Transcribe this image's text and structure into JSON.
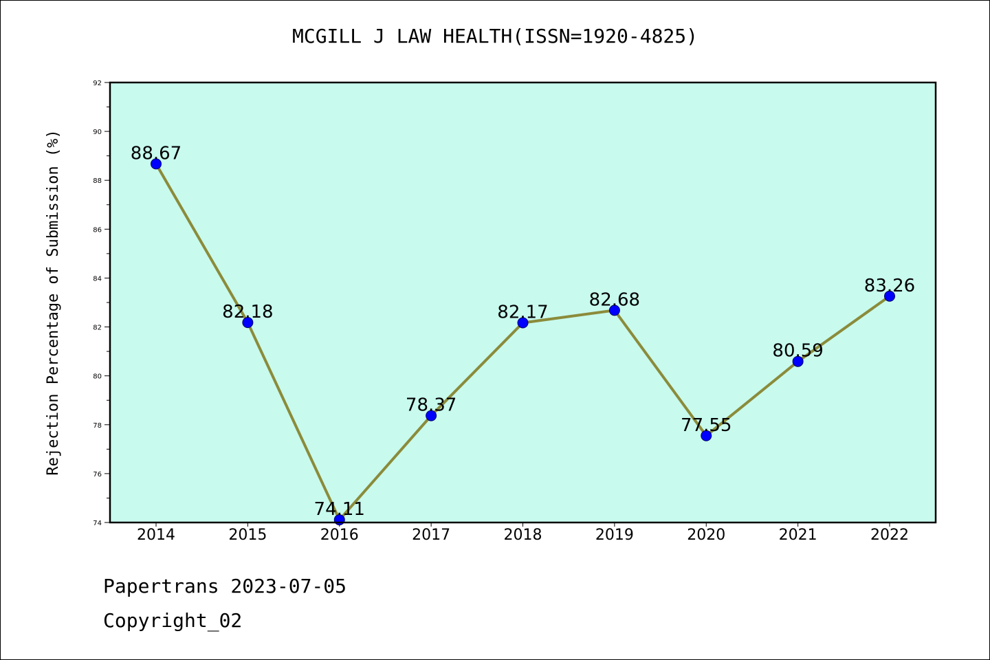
{
  "chart_data": {
    "type": "line",
    "title": "MCGILL J LAW HEALTH(ISSN=1920-4825)",
    "xlabel": "",
    "ylabel": "Rejection Percentage of Submission (%)",
    "categories": [
      "2014",
      "2015",
      "2016",
      "2017",
      "2018",
      "2019",
      "2020",
      "2021",
      "2022"
    ],
    "values": [
      88.67,
      82.18,
      74.11,
      78.37,
      82.17,
      82.68,
      77.55,
      80.59,
      83.26
    ],
    "data_labels": [
      "88.67",
      "82.18",
      "74.11",
      "78.37",
      "82.17",
      "82.68",
      "77.55",
      "80.59",
      "83.26"
    ],
    "ylim": [
      74,
      92
    ],
    "yticks": [
      "74",
      "76",
      "78",
      "80",
      "82",
      "84",
      "86",
      "88",
      "90",
      "92"
    ],
    "grid": false,
    "colors": {
      "plot_background": "#c8faee",
      "line": "#8b8b3a",
      "marker": "#0000ff"
    }
  },
  "footer": {
    "line1": "Papertrans 2023-07-05",
    "line2": "Copyright_02"
  }
}
